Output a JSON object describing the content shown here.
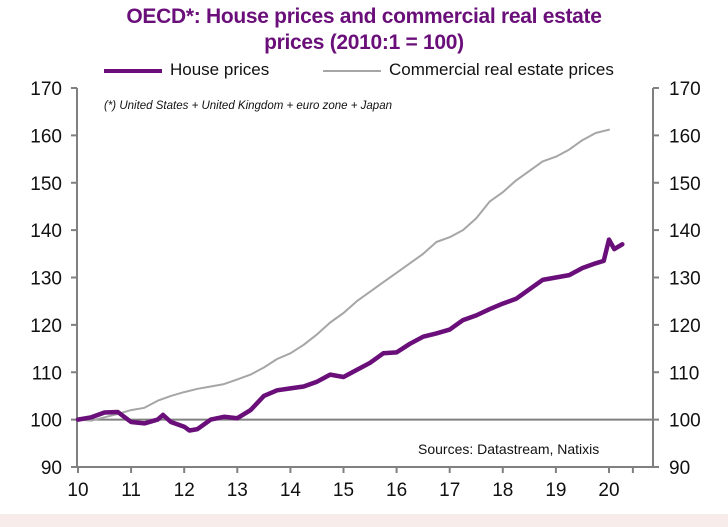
{
  "title_line1": "OECD*:  House prices and commercial real estate",
  "title_line2": "prices (2010:1 = 100)",
  "note": "(*) United States + United Kingdom + euro zone + Japan",
  "source": "Sources: Datastream,  Natixis",
  "colors": {
    "house": "#6a0f7a",
    "commercial": "#a6a6a6",
    "title": "#6a0f7a",
    "axis": "#808080"
  },
  "chart_data": {
    "type": "line",
    "title": "OECD*: House prices and commercial real estate prices (2010:1 = 100)",
    "xlabel": "",
    "ylabel": "",
    "xlim": [
      10,
      20.75
    ],
    "ylim": [
      90,
      170
    ],
    "x_ticks": [
      "10",
      "11",
      "12",
      "13",
      "14",
      "15",
      "16",
      "17",
      "18",
      "19",
      "20"
    ],
    "y_ticks_left": [
      "90",
      "100",
      "110",
      "120",
      "130",
      "140",
      "150",
      "160",
      "170"
    ],
    "y_ticks_right": [
      "90",
      "100",
      "110",
      "120",
      "130",
      "140",
      "150",
      "160",
      "170"
    ],
    "reference_line": 100,
    "grid": false,
    "legend_position": "top",
    "series": [
      {
        "name": "House prices",
        "x": [
          10.0,
          10.25,
          10.5,
          10.75,
          11.0,
          11.25,
          11.5,
          11.6,
          11.75,
          12.0,
          12.1,
          12.25,
          12.5,
          12.75,
          13.0,
          13.25,
          13.5,
          13.75,
          14.0,
          14.25,
          14.5,
          14.75,
          15.0,
          15.25,
          15.5,
          15.75,
          16.0,
          16.25,
          16.5,
          16.75,
          17.0,
          17.25,
          17.5,
          17.75,
          18.0,
          18.25,
          18.5,
          18.75,
          19.0,
          19.25,
          19.5,
          19.75,
          19.9,
          20.0,
          20.1,
          20.25
        ],
        "values": [
          100,
          100.5,
          101.5,
          101.6,
          99.5,
          99.2,
          100,
          101,
          99.5,
          98.5,
          97.7,
          98,
          100,
          100.6,
          100.3,
          102,
          105,
          106.2,
          106.6,
          107,
          108,
          109.5,
          109,
          110.5,
          112,
          114,
          114.2,
          116,
          117.5,
          118.2,
          119,
          121,
          122,
          123.3,
          124.5,
          125.5,
          127.5,
          129.5,
          130,
          130.5,
          132,
          133,
          133.5,
          138,
          136,
          137
        ]
      },
      {
        "name": "Commercial real estate prices",
        "x": [
          10.0,
          10.25,
          10.5,
          10.75,
          11.0,
          11.25,
          11.5,
          11.75,
          12.0,
          12.25,
          12.5,
          12.75,
          13.0,
          13.25,
          13.5,
          13.75,
          14.0,
          14.25,
          14.5,
          14.75,
          15.0,
          15.25,
          15.5,
          15.75,
          16.0,
          16.25,
          16.5,
          16.75,
          17.0,
          17.25,
          17.5,
          17.75,
          18.0,
          18.25,
          18.5,
          18.75,
          19.0,
          19.25,
          19.5,
          19.75,
          20.0
        ],
        "values": [
          100,
          99.8,
          100.5,
          101.2,
          102,
          102.5,
          104,
          105,
          105.8,
          106.5,
          107,
          107.5,
          108.5,
          109.5,
          111,
          112.8,
          114,
          115.8,
          118,
          120.5,
          122.5,
          125,
          127,
          129,
          131,
          133,
          135,
          137.5,
          138.5,
          140,
          142.5,
          146,
          148,
          150.5,
          152.5,
          154.5,
          155.5,
          157,
          159,
          160.5,
          161.2
        ]
      }
    ]
  }
}
